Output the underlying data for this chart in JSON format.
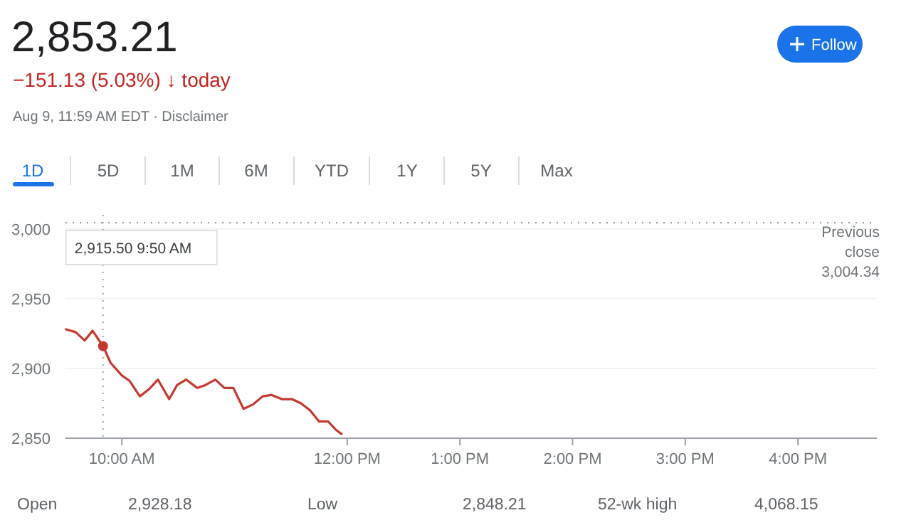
{
  "chart_data": {
    "type": "line",
    "title": "2,853.21",
    "subtitle": "−151.13 (5.03%) ↓ today",
    "x": [
      9.505,
      9.59,
      9.67,
      9.74,
      9.833,
      9.9,
      10.0,
      10.07,
      10.16,
      10.24,
      10.32,
      10.42,
      10.49,
      10.57,
      10.67,
      10.74,
      10.83,
      10.91,
      10.99,
      11.08,
      11.16,
      11.25,
      11.33,
      11.42,
      11.51,
      11.59,
      11.67,
      11.75,
      11.83,
      11.9,
      11.95
    ],
    "series": [
      {
        "color": "#c5392f",
        "values": [
          2928,
          2926,
          2920,
          2927,
          2916,
          2904,
          2895,
          2891,
          2880,
          2885,
          2892,
          2878,
          2888,
          2892,
          2886,
          2888,
          2892,
          2886,
          2886,
          2871,
          2874,
          2880,
          2881,
          2878,
          2878,
          2875,
          2870,
          2862,
          2862,
          2856,
          2853
        ]
      }
    ],
    "xlim": [
      9.5,
      16.7
    ],
    "xticks": [
      {
        "value": 10,
        "label": "10:00 AM"
      },
      {
        "value": 12,
        "label": "12:00 PM"
      },
      {
        "value": 13,
        "label": "1:00 PM"
      },
      {
        "value": 14,
        "label": "2:00 PM"
      },
      {
        "value": 15,
        "label": "3:00 PM"
      },
      {
        "value": 16,
        "label": "4:00 PM"
      }
    ],
    "ylim": [
      2850,
      3010
    ],
    "yticks": [
      {
        "value": 2850,
        "label": "2,850"
      },
      {
        "value": 2900,
        "label": "2,900"
      },
      {
        "value": 2950,
        "label": "2,950"
      },
      {
        "value": 3000,
        "label": "3,000"
      }
    ],
    "grid": "y",
    "line_style": "solid",
    "ref_lines": [
      {
        "axis": "y",
        "value": 3004.34,
        "label": "Previous close 3,004.34",
        "color": "#9aa0a6",
        "line_style": "dotted"
      },
      {
        "axis": "x",
        "value": 9.833,
        "color": "#9aa0a6",
        "line_style": "dotted"
      }
    ],
    "annotations": [
      "Aug 9, 11:59 AM EDT · Disclaimer",
      "1D",
      "5D",
      "1M",
      "6M",
      "YTD",
      "1Y",
      "5Y",
      "Max",
      "Follow",
      "Open",
      "2,928.18",
      "Low",
      "2,848.21",
      "52-wk high",
      "4,068.15",
      "2,915.50 9:50 AM"
    ]
  }
}
